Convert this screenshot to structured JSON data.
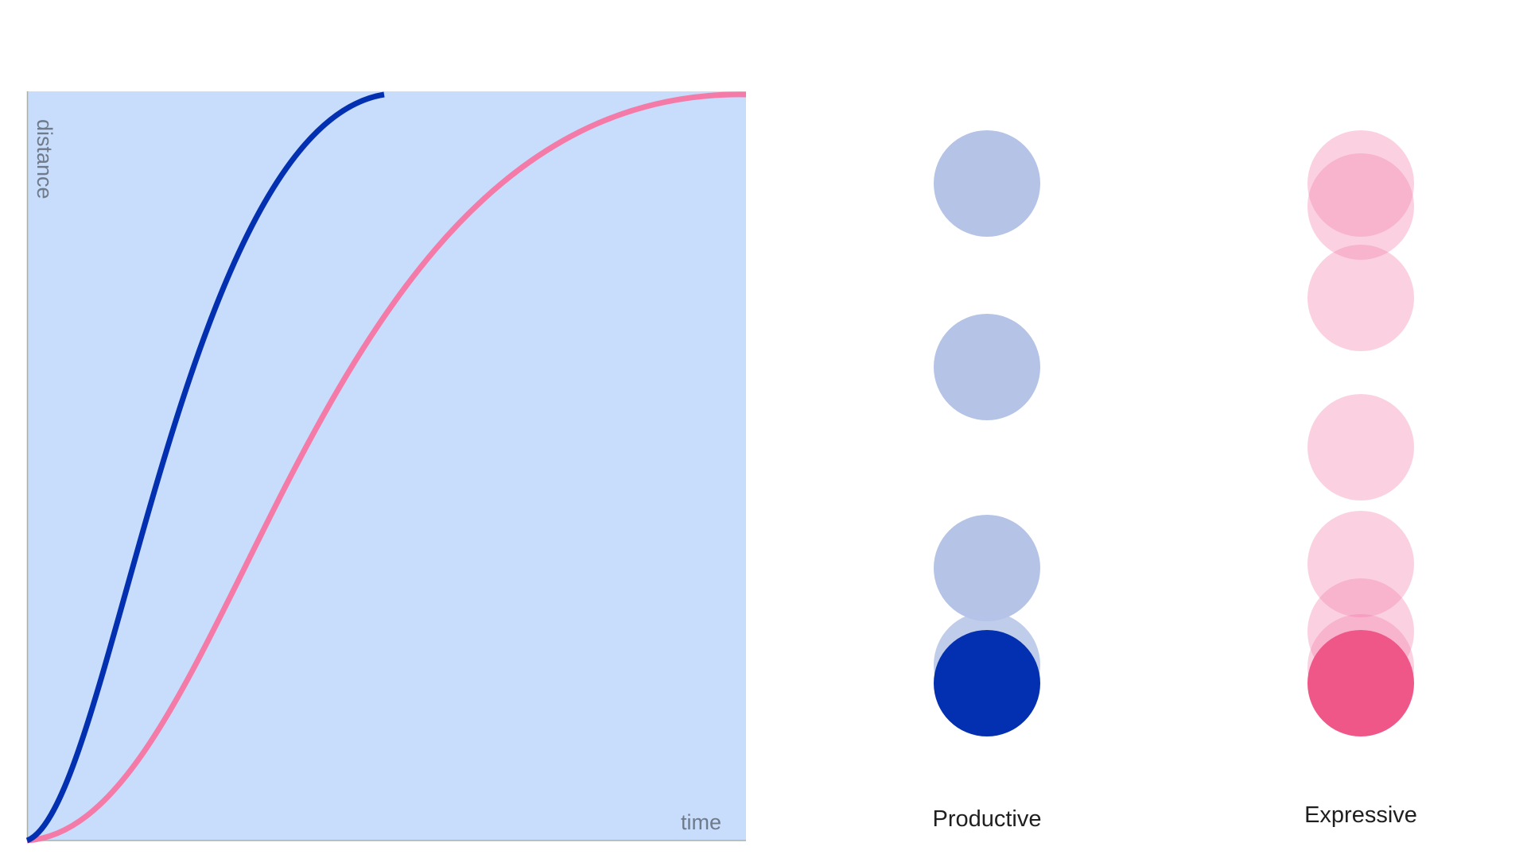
{
  "graph": {
    "x_axis_label": "time",
    "y_axis_label": "distance",
    "background_color": "#c8dcfb",
    "curves": [
      {
        "name": "Productive",
        "color": "#0330b0"
      },
      {
        "name": "Expressive",
        "color": "#f47aa8"
      }
    ]
  },
  "columns": [
    {
      "label": "Productive",
      "ghost_color": "#b4c3e6",
      "final_color": "#0330b0",
      "ghost_count": 4
    },
    {
      "label": "Expressive",
      "ghost_color": "#f8ccdb",
      "final_color": "#ef5789",
      "ghost_count": 7
    }
  ]
}
